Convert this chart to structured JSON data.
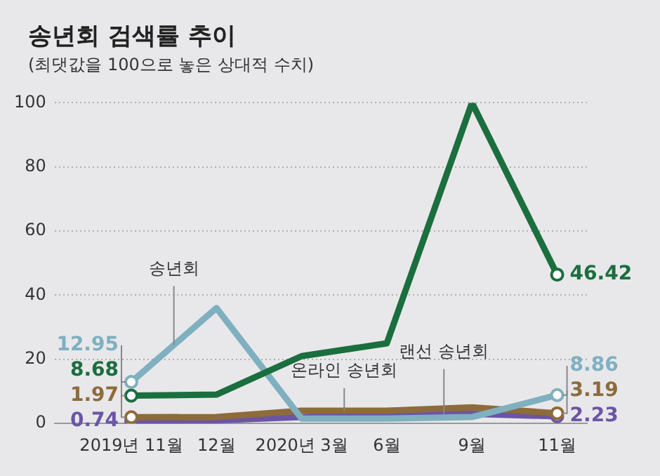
{
  "chart_data": {
    "type": "line",
    "title": "송년회 검색률 추이",
    "subtitle": "(최댓값을 100으로 놓은 상대적 수치)",
    "categories": [
      "2019년 11월",
      "12월",
      "2020년 3월",
      "6월",
      "9월",
      "11월"
    ],
    "series": [
      {
        "name": "송년회",
        "color": "#7fb0c0",
        "values": [
          12.95,
          36,
          1.5,
          1.5,
          2,
          8.86
        ],
        "value_labels": [
          "12.95",
          null,
          null,
          null,
          null,
          "8.86"
        ]
      },
      {
        "color": "#1b6e3e",
        "values": [
          8.68,
          9,
          21,
          25,
          100,
          46.42
        ],
        "value_labels": [
          "8.68",
          null,
          null,
          null,
          null,
          "46.42"
        ]
      },
      {
        "name": "온라인 송년회",
        "color": "#8e6b3a",
        "values": [
          1.97,
          2,
          4,
          4,
          5,
          3.19
        ],
        "value_labels": [
          "1.97",
          null,
          null,
          null,
          null,
          "3.19"
        ]
      },
      {
        "name": "랜선 송년회",
        "color": "#6b55a6",
        "values": [
          0.74,
          1,
          2,
          3,
          3,
          2.23
        ],
        "value_labels": [
          "0.74",
          null,
          null,
          null,
          null,
          "2.23"
        ]
      }
    ],
    "ylim": [
      0,
      100
    ],
    "yticks": [
      0,
      20,
      40,
      60,
      80,
      100
    ],
    "grid": "y",
    "legend": false,
    "line_style": "solid"
  }
}
